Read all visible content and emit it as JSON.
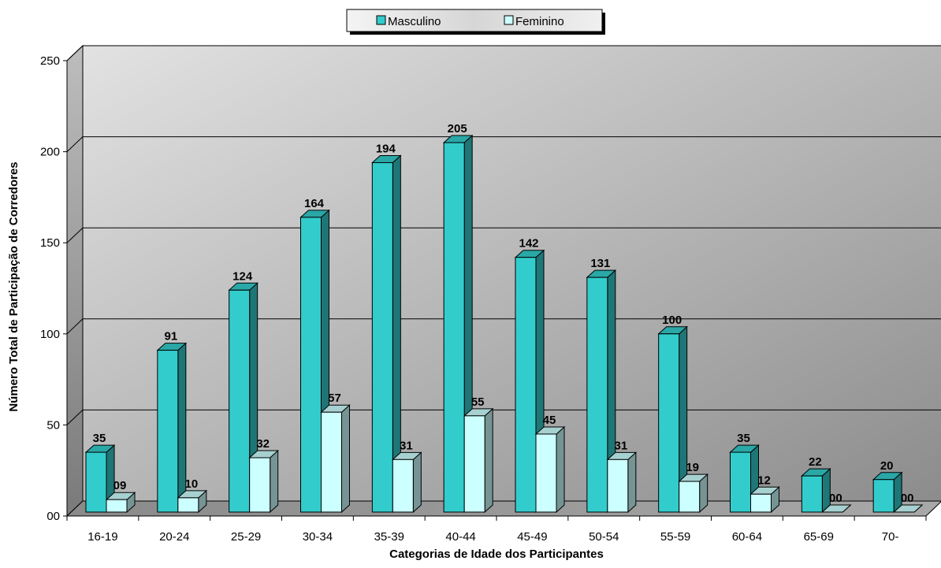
{
  "chart_data": {
    "type": "bar",
    "title": "",
    "xlabel": "Categorias de Idade dos Participantes",
    "ylabel": "Número Total de Participação de Corredores",
    "ylim": [
      0,
      250
    ],
    "yticks": [
      "00",
      "50",
      "100",
      "150",
      "200",
      "250"
    ],
    "y_tick_values": [
      0,
      50,
      100,
      150,
      200,
      250
    ],
    "grid": true,
    "legend_position": "top-center",
    "categories": [
      "16-19",
      "20-24",
      "25-29",
      "30-34",
      "35-39",
      "40-44",
      "45-49",
      "50-54",
      "55-59",
      "60-64",
      "65-69",
      "70-"
    ],
    "series": [
      {
        "name": "Masculino",
        "color": "#33CCCC",
        "values": [
          35,
          91,
          124,
          164,
          194,
          205,
          142,
          131,
          100,
          35,
          22,
          20
        ],
        "labels": [
          "35",
          "91",
          "124",
          "164",
          "194",
          "205",
          "142",
          "131",
          "100",
          "35",
          "22",
          "20"
        ]
      },
      {
        "name": "Feminino",
        "color": "#CCFFFF",
        "values": [
          9,
          10,
          32,
          57,
          31,
          55,
          45,
          31,
          19,
          12,
          0,
          0
        ],
        "labels": [
          "09",
          "10",
          "32",
          "57",
          "31",
          "55",
          "45",
          "31",
          "19",
          "12",
          "00",
          "00"
        ]
      }
    ]
  }
}
